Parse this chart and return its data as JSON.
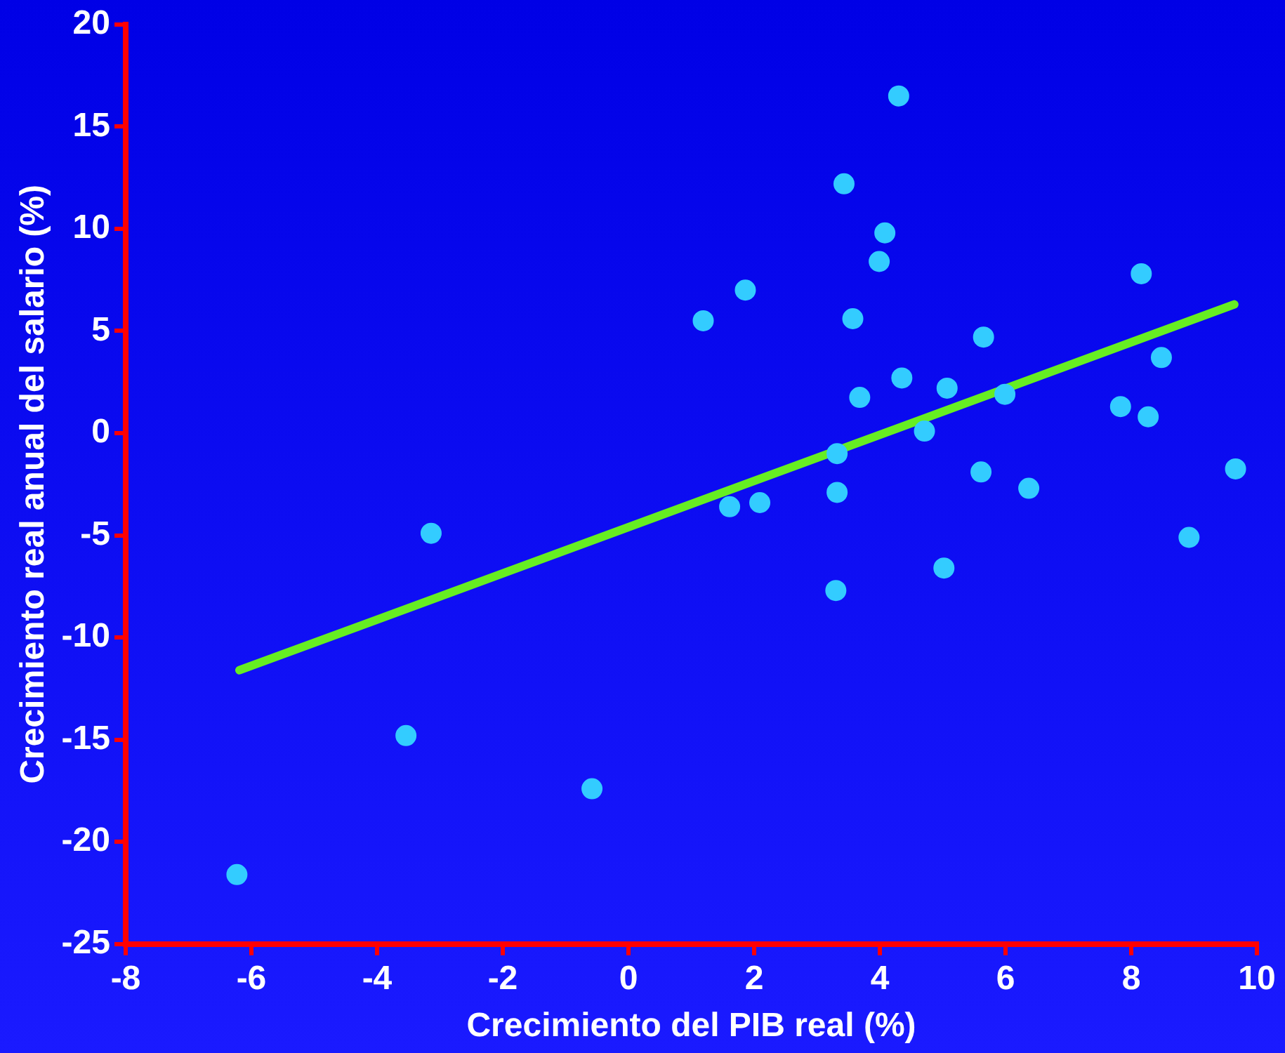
{
  "chart_data": {
    "type": "scatter",
    "xlabel": "Crecimiento del PIB real (%)",
    "ylabel": "Crecimiento real anual del salario (%)",
    "xlim": [
      -8,
      10
    ],
    "xticks": [
      -8,
      -6,
      -4,
      -2,
      0,
      2,
      4,
      6,
      8,
      10
    ],
    "ylim": [
      -25,
      20
    ],
    "yticks": [
      -25,
      -20,
      -15,
      -10,
      -5,
      0,
      5,
      10,
      15,
      20
    ],
    "grid": false,
    "legend": false,
    "series": [
      {
        "type": "scatter",
        "marker": "circle",
        "color": "#33ccff",
        "x": [
          -6.23,
          -3.54,
          -3.14,
          -0.58,
          1.19,
          1.86,
          1.61,
          2.09,
          3.43,
          3.57,
          3.68,
          3.32,
          3.32,
          3.3,
          4.3,
          4.08,
          3.99,
          4.35,
          4.71,
          5.07,
          5.02,
          5.65,
          5.61,
          5.99,
          6.37,
          7.83,
          8.16,
          8.27,
          8.48,
          8.92,
          9.66
        ],
        "values": [
          -21.6,
          -14.8,
          -4.9,
          -17.4,
          5.5,
          7.0,
          -3.6,
          -3.4,
          12.2,
          5.6,
          1.75,
          -1.0,
          -2.9,
          -7.7,
          16.5,
          9.8,
          8.4,
          2.7,
          0.1,
          2.2,
          -6.6,
          4.7,
          -1.9,
          1.9,
          -2.7,
          1.3,
          7.8,
          0.8,
          3.7,
          -5.1,
          -1.75
        ]
      },
      {
        "type": "line",
        "marker": "none",
        "color": "#66ee22",
        "x": [
          -6.19,
          9.64
        ],
        "values": [
          -11.6,
          6.3
        ]
      }
    ]
  }
}
